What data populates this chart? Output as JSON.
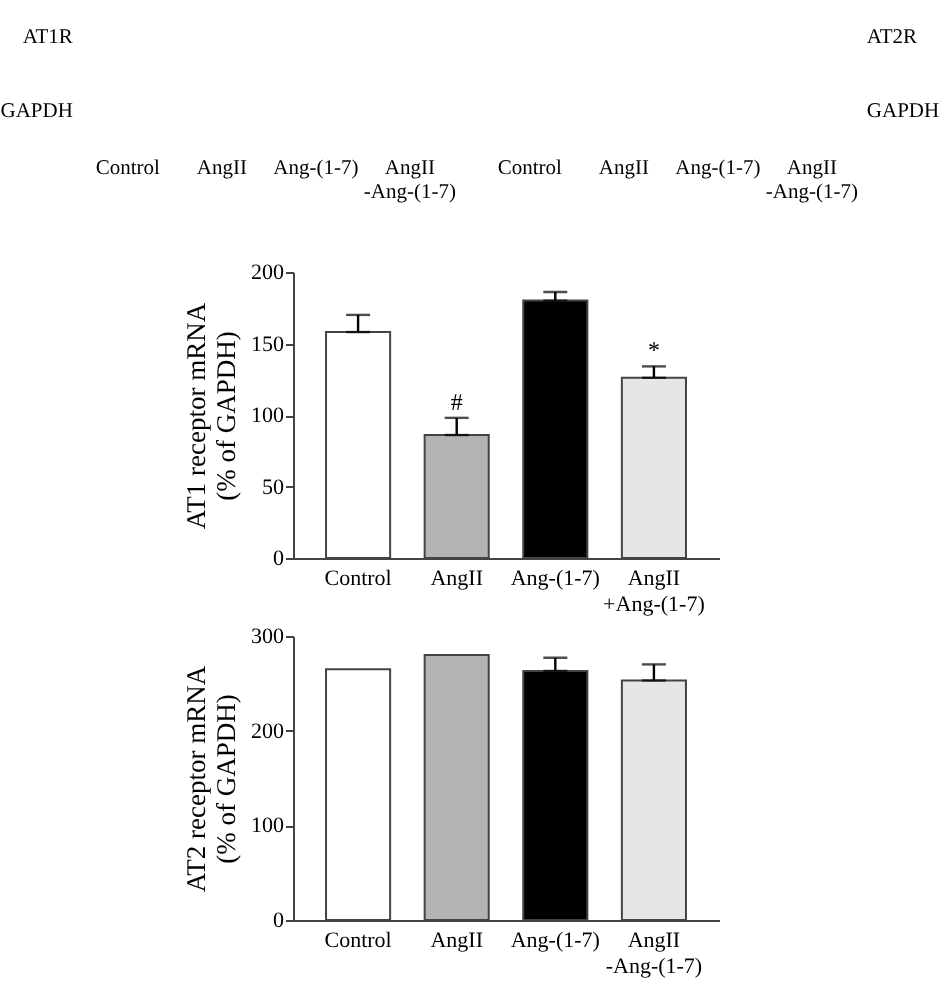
{
  "chart_data": [
    {
      "type": "other",
      "y_categories": [
        "AT1R",
        "GAPDH"
      ],
      "categories": [
        "Control",
        "AngII",
        "Ang-(1-7)",
        "AngII\n-Ang-(1-7)"
      ]
    },
    {
      "type": "other",
      "y2_categories": [
        "AT2R",
        "GAPDH"
      ],
      "categories": [
        "Control",
        "AngII",
        "Ang-(1-7)",
        "AngII\n-Ang-(1-7)"
      ]
    },
    {
      "type": "bar",
      "ylabel": "AT1 receptor mRNA\n(% of GAPDH)",
      "categories": [
        "Control",
        "AngII",
        "Ang-(1-7)",
        "AngII\n+Ang-(1-7)"
      ],
      "values": [
        158,
        86,
        180,
        126
      ],
      "colors": [
        "#ffffff",
        "#b4b4b4",
        "#000000",
        "#e6e6e6"
      ],
      "errors": [
        [
          158,
          170
        ],
        [
          86,
          98
        ],
        [
          180,
          186
        ],
        [
          126,
          134
        ]
      ],
      "ylim": [
        0,
        200
      ],
      "yticks": [
        0,
        50,
        100,
        150,
        200
      ],
      "annotations": [
        {
          "text": "#",
          "x": "AngII",
          "y": 98
        },
        {
          "text": "*",
          "x": "AngII\n+Ang-(1-7)",
          "y": 134
        }
      ]
    },
    {
      "type": "bar",
      "ylabel": "AT2 receptor mRNA\n(% of GAPDH)",
      "categories": [
        "Control",
        "AngII",
        "Ang-(1-7)",
        "AngII\n-Ang-(1-7)"
      ],
      "values": [
        265,
        280,
        263,
        253
      ],
      "colors": [
        "#ffffff",
        "#b4b4b4",
        "#000000",
        "#e6e6e6"
      ],
      "errors": [
        null,
        null,
        [
          263,
          277
        ],
        [
          253,
          270
        ]
      ],
      "ylim": [
        0,
        300
      ],
      "yticks": [
        0,
        100,
        200,
        300
      ]
    }
  ]
}
